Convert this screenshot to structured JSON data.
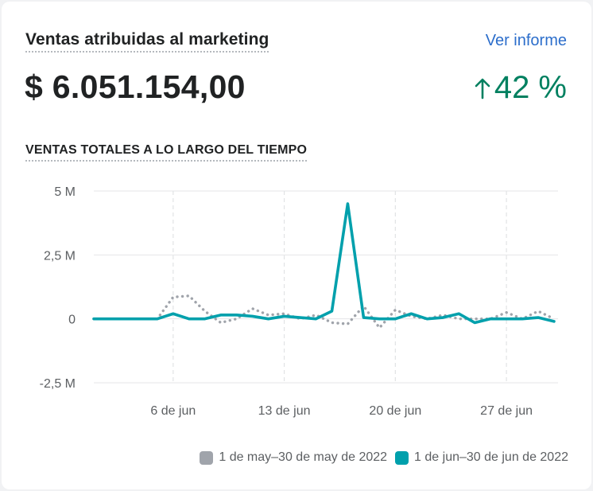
{
  "card": {
    "title": "Ventas atribuidas al marketing",
    "report_link": "Ver informe",
    "total": "$ 6.051.154,00",
    "change": "42 %",
    "change_icon": "arrow-up-icon",
    "subtitle": "VENTAS TOTALES A LO LARGO DEL TIEMPO"
  },
  "colors": {
    "current": "#00a0ac",
    "previous": "#a0a4ab",
    "positive": "#008060",
    "link": "#2c6ecb"
  },
  "chart_data": {
    "type": "line",
    "title": "VENTAS TOTALES A LO LARGO DEL TIEMPO",
    "xlabel": "",
    "ylabel": "",
    "ylim": [
      -2500000,
      5000000
    ],
    "yticks": [
      5000000,
      2500000,
      0,
      -2500000
    ],
    "ytick_labels": [
      "5 M",
      "2,5 M",
      "0",
      "-2,5 M"
    ],
    "x": [
      1,
      2,
      3,
      4,
      5,
      6,
      7,
      8,
      9,
      10,
      11,
      12,
      13,
      14,
      15,
      16,
      17,
      18,
      19,
      20,
      21,
      22,
      23,
      24,
      25,
      26,
      27,
      28,
      29,
      30
    ],
    "xticks": [
      6,
      13,
      20,
      27
    ],
    "xtick_labels": [
      "6 de jun",
      "13 de jun",
      "20 de jun",
      "27 de jun"
    ],
    "grid": true,
    "legend_position": "bottom-right",
    "series": [
      {
        "name": "1 de may–30 de may de 2022",
        "style": "dotted",
        "color": "#a0a4ab",
        "values": [
          0,
          0,
          0,
          0,
          0,
          850000,
          900000,
          300000,
          -150000,
          0,
          400000,
          150000,
          200000,
          0,
          150000,
          -150000,
          -200000,
          500000,
          -350000,
          350000,
          100000,
          0,
          150000,
          0,
          0,
          0,
          250000,
          0,
          300000,
          0
        ]
      },
      {
        "name": "1 de jun–30 de jun de 2022",
        "style": "solid",
        "color": "#00a0ac",
        "values": [
          0,
          0,
          0,
          0,
          0,
          200000,
          0,
          0,
          150000,
          150000,
          100000,
          0,
          100000,
          50000,
          0,
          300000,
          4500000,
          50000,
          0,
          0,
          200000,
          0,
          50000,
          200000,
          -150000,
          0,
          0,
          0,
          50000,
          -100000
        ]
      }
    ]
  }
}
